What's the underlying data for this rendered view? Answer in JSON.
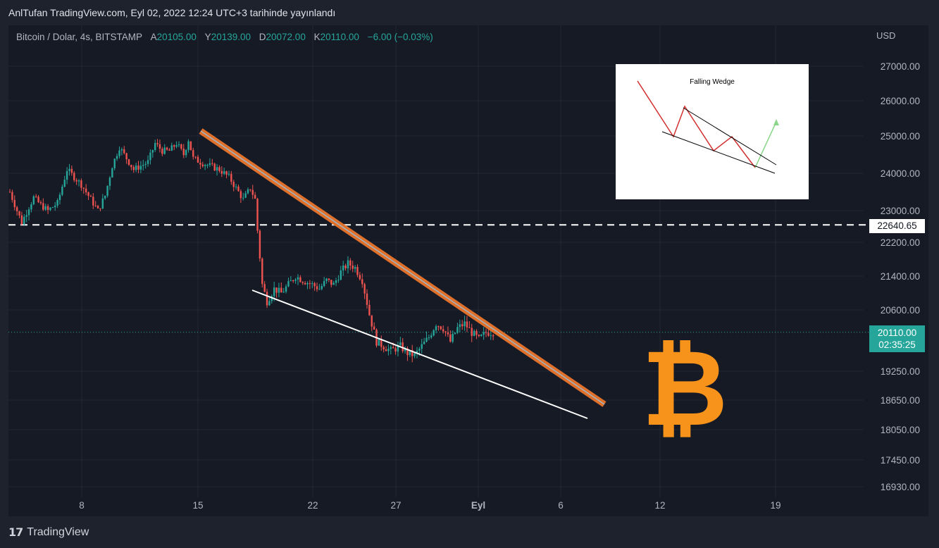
{
  "header": {
    "published": "AnlTufan TradingView.com, Eyl 02, 2022 12:24 UTC+3 tarihinde yayınlandı"
  },
  "legend": {
    "symbol": "Bitcoin / Dolar, 4s, BITSTAMP",
    "open_label": "A",
    "open": "20105.00",
    "high_label": "Y",
    "high": "20139.00",
    "low_label": "D",
    "low": "20072.00",
    "close_label": "K",
    "close": "20110.00",
    "change": "−6.00 (−0.03%)"
  },
  "footer": {
    "brand": "TradingView"
  },
  "inset": {
    "title": "Falling Wedge"
  },
  "price_label": {
    "price": "20110.00",
    "countdown": "02:35:25"
  },
  "level_label": "22640.65",
  "colors": {
    "up": "#26a69a",
    "down": "#ef5350",
    "channel": "#e0702a",
    "bitcoin": "#f7931a",
    "background": "#161a25"
  },
  "chart_data": {
    "type": "candlestick",
    "currency": "USD",
    "y_ticks": [
      27000,
      26000,
      25000,
      24000,
      23000,
      22200,
      21400,
      20600,
      19250,
      18650,
      18050,
      17450,
      16930
    ],
    "y_tick_labels": [
      "27000.00",
      "26000.00",
      "25000.00",
      "24000.00",
      "23000.00",
      "22200.00",
      "21400.00",
      "20600.00",
      "19250.00",
      "18650.00",
      "18050.00",
      "17450.00",
      "16930.00"
    ],
    "x_tick_labels": [
      "8",
      "15",
      "22",
      "27",
      "Eyl",
      "6",
      "12",
      "19"
    ],
    "horizontal_level": 22640.65,
    "last_price": 20110.0,
    "trend_points": [
      [
        0,
        23500
      ],
      [
        3,
        23000
      ],
      [
        5,
        22700
      ],
      [
        8,
        23100
      ],
      [
        10,
        23350
      ],
      [
        13,
        23150
      ],
      [
        16,
        23000
      ],
      [
        20,
        23200
      ],
      [
        24,
        24100
      ],
      [
        27,
        23900
      ],
      [
        30,
        23700
      ],
      [
        34,
        23300
      ],
      [
        37,
        23000
      ],
      [
        40,
        23400
      ],
      [
        43,
        24200
      ],
      [
        46,
        24700
      ],
      [
        49,
        24400
      ],
      [
        52,
        24100
      ],
      [
        55,
        24200
      ],
      [
        58,
        24300
      ],
      [
        61,
        24800
      ],
      [
        64,
        24600
      ],
      [
        67,
        24600
      ],
      [
        70,
        24800
      ],
      [
        73,
        24500
      ],
      [
        75,
        24900
      ],
      [
        77,
        24400
      ],
      [
        80,
        24300
      ],
      [
        84,
        24200
      ],
      [
        88,
        24100
      ],
      [
        92,
        23900
      ],
      [
        95,
        23600
      ],
      [
        98,
        23300
      ],
      [
        101,
        23600
      ],
      [
        103,
        23300
      ],
      [
        104,
        22500
      ],
      [
        106,
        21200
      ],
      [
        108,
        20800
      ],
      [
        111,
        21100
      ],
      [
        114,
        21000
      ],
      [
        117,
        21200
      ],
      [
        120,
        21400
      ],
      [
        123,
        21300
      ],
      [
        127,
        21200
      ],
      [
        130,
        21100
      ],
      [
        133,
        21300
      ],
      [
        136,
        21200
      ],
      [
        139,
        21500
      ],
      [
        142,
        21700
      ],
      [
        145,
        21600
      ],
      [
        148,
        21300
      ],
      [
        151,
        20500
      ],
      [
        154,
        19900
      ],
      [
        157,
        19800
      ],
      [
        160,
        19700
      ],
      [
        164,
        19800
      ],
      [
        167,
        19650
      ],
      [
        170,
        19600
      ],
      [
        173,
        19800
      ],
      [
        176,
        20000
      ],
      [
        179,
        20300
      ],
      [
        182,
        20200
      ],
      [
        185,
        19900
      ],
      [
        188,
        20200
      ],
      [
        191,
        20300
      ],
      [
        194,
        20100
      ],
      [
        197,
        19950
      ],
      [
        200,
        20100
      ],
      [
        203,
        20110
      ]
    ],
    "wedge_upper": [
      [
        25100,
        0
      ],
      [
        18450,
        1
      ]
    ],
    "wedge_lower": [
      [
        21200,
        0
      ],
      [
        18200,
        1
      ]
    ],
    "inset_pattern": "Falling Wedge"
  }
}
